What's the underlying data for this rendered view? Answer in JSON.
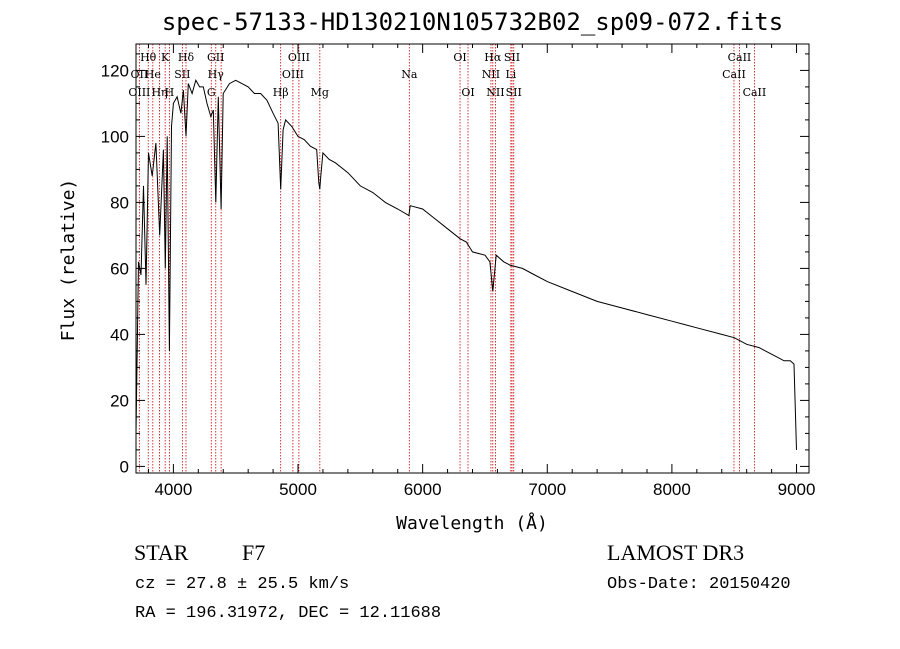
{
  "chart_data": {
    "type": "line",
    "title": "spec-57133-HD130210N105732B02_sp09-072.fits",
    "xlabel": "Wavelength (Å)",
    "ylabel": "Flux (relative)",
    "xlim": [
      3700,
      9100
    ],
    "ylim": [
      -2,
      128
    ],
    "xticks": [
      4000,
      5000,
      6000,
      7000,
      8000,
      9000
    ],
    "yticks": [
      0,
      20,
      40,
      60,
      80,
      100,
      120
    ],
    "series": [
      {
        "name": "flux",
        "x": [
          3700,
          3720,
          3740,
          3760,
          3780,
          3800,
          3830,
          3860,
          3890,
          3920,
          3935,
          3950,
          3968,
          3985,
          4000,
          4030,
          4060,
          4080,
          4101,
          4120,
          4150,
          4180,
          4210,
          4240,
          4270,
          4300,
          4320,
          4340,
          4360,
          4383,
          4400,
          4450,
          4500,
          4550,
          4600,
          4650,
          4700,
          4750,
          4800,
          4840,
          4861,
          4880,
          4900,
          4950,
          5000,
          5050,
          5100,
          5150,
          5167,
          5175,
          5183,
          5200,
          5250,
          5300,
          5400,
          5500,
          5600,
          5700,
          5800,
          5890,
          5900,
          6000,
          6100,
          6200,
          6300,
          6350,
          6400,
          6500,
          6540,
          6563,
          6590,
          6650,
          6700,
          6800,
          6900,
          7000,
          7200,
          7400,
          7600,
          7800,
          8000,
          8100,
          8200,
          8400,
          8500,
          8600,
          8700,
          8800,
          8900,
          8950,
          8980,
          9000
        ],
        "y": [
          10,
          62,
          58,
          85,
          55,
          95,
          88,
          98,
          70,
          96,
          60,
          100,
          35,
          103,
          110,
          112,
          107,
          114,
          100,
          116,
          113,
          117,
          115,
          115,
          110,
          106,
          108,
          80,
          112,
          78,
          113,
          116,
          117,
          116,
          115,
          113,
          113,
          111,
          107,
          104,
          84,
          102,
          105,
          103,
          100,
          99,
          97,
          96,
          86,
          84,
          88,
          95,
          93,
          92,
          89,
          85,
          83,
          80,
          78,
          76,
          79,
          78,
          75,
          72,
          69,
          68,
          65,
          64,
          62,
          53,
          64,
          62,
          61,
          60,
          58,
          56,
          53,
          50,
          48,
          46,
          44,
          43,
          42,
          40,
          39,
          37,
          36,
          34,
          32,
          32,
          31,
          5
        ]
      }
    ],
    "line_labels": [
      {
        "label": "Hθ",
        "x": 3798,
        "row": 1
      },
      {
        "label": "OII",
        "x": 3727,
        "row": 2
      },
      {
        "label": "OIII",
        "x": 3727,
        "row": 3
      },
      {
        "label": "He",
        "x": 3835,
        "row": 2
      },
      {
        "label": "Hη",
        "x": 3889,
        "row": 3
      },
      {
        "label": "K",
        "x": 3934,
        "row": 1
      },
      {
        "label": "H",
        "x": 3968,
        "row": 3
      },
      {
        "label": "SII",
        "x": 4072,
        "row": 2
      },
      {
        "label": "Hδ",
        "x": 4101,
        "row": 1
      },
      {
        "label": "GII",
        "x": 4340,
        "row": 1
      },
      {
        "label": "Hγ",
        "x": 4340,
        "row": 2
      },
      {
        "label": "G",
        "x": 4304,
        "row": 3
      },
      {
        "label": "Hβ",
        "x": 4861,
        "row": 3
      },
      {
        "label": "OIII",
        "x": 5007,
        "row": 1
      },
      {
        "label": "OIII",
        "x": 4959,
        "row": 2
      },
      {
        "label": "Mg",
        "x": 5175,
        "row": 3
      },
      {
        "label": "Na",
        "x": 5893,
        "row": 2
      },
      {
        "label": "OI",
        "x": 6300,
        "row": 1
      },
      {
        "label": "OI",
        "x": 6364,
        "row": 3
      },
      {
        "label": "Hα",
        "x": 6563,
        "row": 1
      },
      {
        "label": "NII",
        "x": 6548,
        "row": 2
      },
      {
        "label": "NII",
        "x": 6584,
        "row": 3
      },
      {
        "label": "SII",
        "x": 6717,
        "row": 1
      },
      {
        "label": "Li",
        "x": 6708,
        "row": 2
      },
      {
        "label": "SII",
        "x": 6731,
        "row": 3
      },
      {
        "label": "CaII",
        "x": 8542,
        "row": 1
      },
      {
        "label": "CaII",
        "x": 8498,
        "row": 2
      },
      {
        "label": "CaII",
        "x": 8662,
        "row": 3
      }
    ],
    "marker_lines": [
      3727,
      3798,
      3835,
      3889,
      3934,
      3968,
      4072,
      4101,
      4304,
      4340,
      4383,
      4861,
      4959,
      5007,
      5175,
      5893,
      6300,
      6364,
      6548,
      6563,
      6584,
      6708,
      6717,
      6731,
      8498,
      8542,
      8662
    ],
    "colors": {
      "spectrum": "#000000",
      "markers": "#cc0000",
      "axes": "#000000"
    }
  },
  "info": {
    "object": "STAR",
    "subclass": "F7",
    "survey": "LAMOST DR3",
    "velocity": "cz = 27.8 ± 25.5 km/s",
    "obs_date": "Obs-Date: 20150420",
    "coords": "RA = 196.31972, DEC =  12.11688"
  }
}
